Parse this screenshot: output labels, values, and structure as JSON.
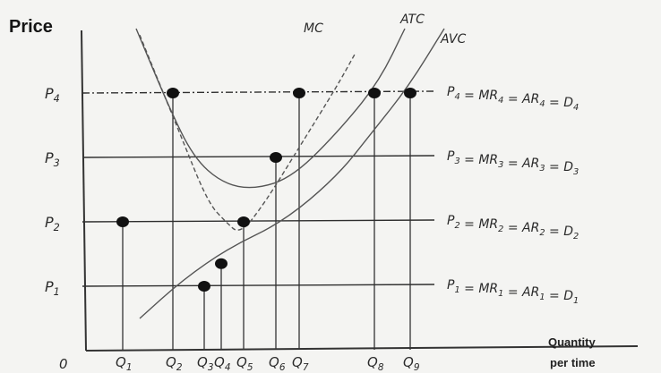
{
  "chart_data": {
    "type": "line",
    "ylabel": "Price",
    "xlabel_line1": "Quantity",
    "xlabel_line2": "per time",
    "origin_label": "0",
    "grid": false,
    "legend": "none",
    "y_ticks": [
      "P4",
      "P3",
      "P2",
      "P1"
    ],
    "x_ticks": [
      "Q1",
      "Q2",
      "Q3",
      "Q4",
      "Q5",
      "Q6",
      "Q7",
      "Q8",
      "Q9"
    ],
    "y_tick_values": [
      4,
      3,
      2,
      1
    ],
    "x_tick_values": [
      1,
      2,
      3,
      4,
      5,
      6,
      7,
      8,
      9
    ],
    "curves": [
      {
        "name": "MC",
        "points": [
          [
            1.5,
            4.9
          ],
          [
            2.6,
            3.4
          ],
          [
            3.4,
            2.3
          ],
          [
            3.9,
            2.0
          ],
          [
            4.3,
            1.8
          ],
          [
            5.0,
            2.3
          ],
          [
            6.0,
            3.2
          ],
          [
            7.0,
            4.1
          ],
          [
            7.5,
            4.6
          ]
        ]
      },
      {
        "name": "ATC",
        "points": [
          [
            1.4,
            5.0
          ],
          [
            2.3,
            3.8
          ],
          [
            3.0,
            3.0
          ],
          [
            3.8,
            2.6
          ],
          [
            4.7,
            2.5
          ],
          [
            5.8,
            2.7
          ],
          [
            7.2,
            3.5
          ],
          [
            8.2,
            4.2
          ],
          [
            8.9,
            5.0
          ]
        ]
      },
      {
        "name": "AVC",
        "points": [
          [
            1.5,
            0.5
          ],
          [
            2.7,
            1.1
          ],
          [
            4.0,
            1.6
          ],
          [
            5.5,
            2.0
          ],
          [
            7.0,
            2.7
          ],
          [
            8.0,
            3.4
          ],
          [
            9.0,
            4.1
          ],
          [
            10.0,
            5.0
          ]
        ]
      }
    ],
    "price_lines": [
      {
        "tick": "P4",
        "label": "P4 = MR4 = AR4 = D4",
        "y": 4,
        "style": "dash-dot"
      },
      {
        "tick": "P3",
        "label": "P3 = MR3 = AR3 = D3",
        "y": 3,
        "style": "solid"
      },
      {
        "tick": "P2",
        "label": "P2 = MR2 = AR2 = D2",
        "y": 2,
        "style": "solid"
      },
      {
        "tick": "P1",
        "label": "P1 = MR1 = AR1 = D1",
        "y": 1,
        "style": "solid"
      }
    ],
    "points": [
      {
        "x": 1,
        "y": 2
      },
      {
        "x": 2,
        "y": 4
      },
      {
        "x": 3,
        "y": 1
      },
      {
        "x": 4,
        "y": 1.35
      },
      {
        "x": 5,
        "y": 2
      },
      {
        "x": 6,
        "y": 3
      },
      {
        "x": 7,
        "y": 4
      },
      {
        "x": 8,
        "y": 4
      },
      {
        "x": 9,
        "y": 4
      }
    ],
    "curve_labels": [
      "MC",
      "ATC",
      "AVC"
    ]
  }
}
